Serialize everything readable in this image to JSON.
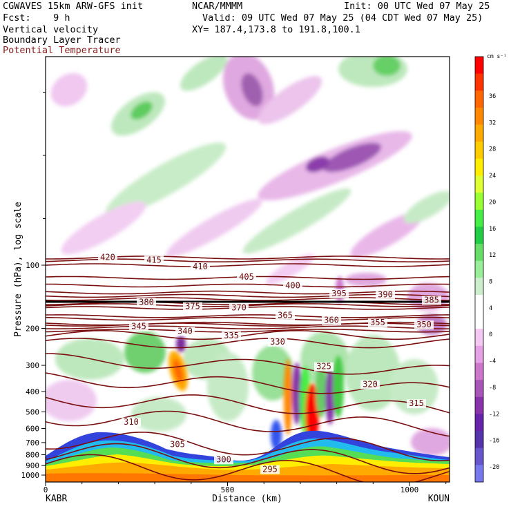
{
  "header": {
    "model": "CGWAVES 15km ARW-GFS init",
    "center": "NCAR/MMMM",
    "init": "Init: 00 UTC Wed 07 May 25",
    "fcst": "Fcst:    9 h",
    "valid": "Valid: 09 UTC Wed 07 May 25 (04 CDT Wed 07 May 25)",
    "field1": "Vertical velocity",
    "xy": "XY= 187.4,173.8 to 191.8,100.1",
    "field2": "Boundary Layer Tracer",
    "field3": "Potential Temperature"
  },
  "chart_data": {
    "type": "heatmap",
    "xlabel": "Distance (km)",
    "ylabel": "Pressure (hPa), log scale",
    "x_ticks": [
      0,
      500,
      1000
    ],
    "x_endpoints": [
      "KABR",
      "KOUN"
    ],
    "xlim": [
      0,
      1110
    ],
    "y_ticks": [
      100,
      200,
      300,
      400,
      500,
      600,
      700,
      800,
      900,
      1000
    ],
    "colorbar": {
      "unit": "cm s⁻¹",
      "ticks": [
        36,
        32,
        28,
        24,
        20,
        16,
        12,
        8,
        4,
        0,
        -4,
        -8,
        -12,
        -16,
        -20
      ],
      "colors": [
        "#ff0000",
        "#ff3300",
        "#ff6600",
        "#ff8800",
        "#ffaa00",
        "#ffcc00",
        "#ffee00",
        "#e0ff33",
        "#99ff33",
        "#44ee44",
        "#22cc44",
        "#66dd66",
        "#99ee99",
        "#cceecc",
        "#ffffff",
        "#ffffff",
        "#f3c8f3",
        "#e6a0e6",
        "#cc77cc",
        "#a855b8",
        "#8833aa",
        "#6622aa",
        "#5533aa",
        "#6655cc",
        "#7777ee"
      ]
    },
    "isentrope_labels": [
      {
        "text": "420",
        "x": 115,
        "p": 92
      },
      {
        "text": "415",
        "x": 115,
        "p": 95
      },
      {
        "text": "410",
        "x": 115,
        "p": 100
      },
      {
        "text": "405",
        "x": 115,
        "p": 115
      },
      {
        "text": "400",
        "x": 115,
        "p": 125
      },
      {
        "text": "395",
        "x": 115,
        "p": 135
      },
      {
        "text": "390",
        "x": 115,
        "p": 140
      },
      {
        "text": "385",
        "x": 115,
        "p": 145
      },
      {
        "text": "380",
        "x": 115,
        "p": 152
      },
      {
        "text": "375",
        "x": 115,
        "p": 155
      },
      {
        "text": "370",
        "x": 115,
        "p": 160
      },
      {
        "text": "365",
        "x": 115,
        "p": 175
      },
      {
        "text": "360",
        "x": 115,
        "p": 180
      },
      {
        "text": "355",
        "x": 115,
        "p": 190
      },
      {
        "text": "350",
        "x": 115,
        "p": 192
      },
      {
        "text": "345",
        "x": 115,
        "p": 198
      },
      {
        "text": "340",
        "x": 115,
        "p": 205
      },
      {
        "text": "335",
        "x": 115,
        "p": 215
      },
      {
        "text": "330",
        "x": 115,
        "p": 235
      },
      {
        "text": "325",
        "x": 115,
        "p": 300
      },
      {
        "text": "320",
        "x": 115,
        "p": 370
      },
      {
        "text": "315",
        "x": 115,
        "p": 460
      },
      {
        "text": "310",
        "x": 115,
        "p": 560
      },
      {
        "text": "305",
        "x": 115,
        "p": 720
      },
      {
        "text": "300",
        "x": 115,
        "p": 830
      },
      {
        "text": "295",
        "x": 115,
        "p": 950
      }
    ]
  }
}
